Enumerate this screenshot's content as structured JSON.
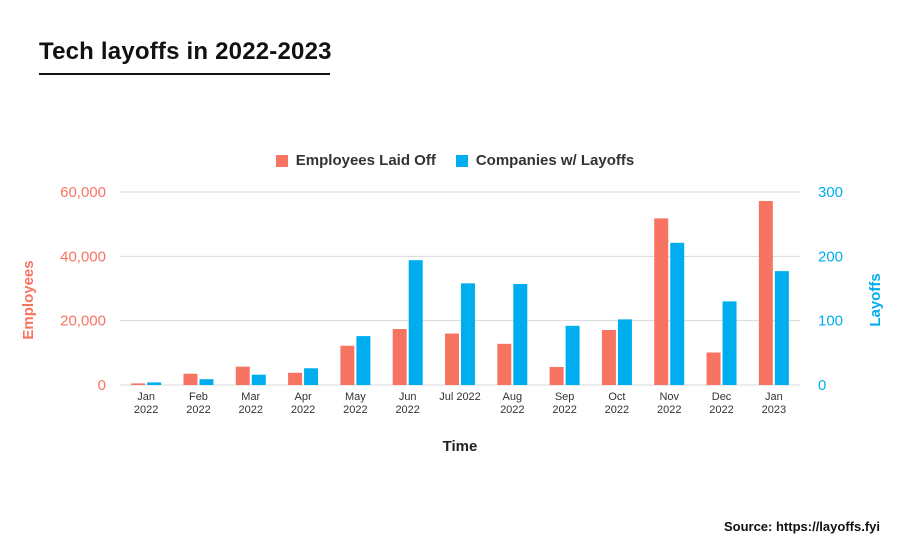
{
  "header": {
    "title": "Tech layoffs in 2022-2023"
  },
  "source_note": "Source: https://layoffs.fyi",
  "colors": {
    "employees": "#F87462",
    "companies": "#00ADEF",
    "grid": "#D9D9D9",
    "text": "#333333"
  },
  "chart_data": {
    "type": "bar",
    "xlabel": "Time",
    "ylabel_left": "Employees",
    "ylabel_right": "Layoffs",
    "ylim_left": [
      0,
      60000
    ],
    "ylim_right": [
      0,
      300
    ],
    "yticks_left": [
      "0",
      "20,000",
      "40,000",
      "60,000"
    ],
    "yticks_right": [
      "0",
      "100",
      "200",
      "300"
    ],
    "legend_position": "top",
    "grid": true,
    "categories": [
      [
        "Jan",
        "2022"
      ],
      [
        "Feb",
        "2022"
      ],
      [
        "Mar",
        "2022"
      ],
      [
        "Apr",
        "2022"
      ],
      [
        "May",
        "2022"
      ],
      [
        "Jun",
        "2022"
      ],
      [
        "Jul 2022"
      ],
      [
        "Aug",
        "2022"
      ],
      [
        "Sep",
        "2022"
      ],
      [
        "Oct",
        "2022"
      ],
      [
        "Nov",
        "2022"
      ],
      [
        "Dec",
        "2022"
      ],
      [
        "Jan",
        "2023"
      ]
    ],
    "series": [
      {
        "name": "Employees Laid Off",
        "axis": "left",
        "values": [
          500,
          3500,
          5700,
          3800,
          12200,
          17400,
          16000,
          12800,
          5600,
          17100,
          51800,
          10100,
          57200
        ]
      },
      {
        "name": "Companies w/ Layoffs",
        "axis": "right",
        "values": [
          4,
          9,
          16,
          26,
          76,
          194,
          158,
          157,
          92,
          102,
          221,
          130,
          177
        ]
      }
    ]
  }
}
